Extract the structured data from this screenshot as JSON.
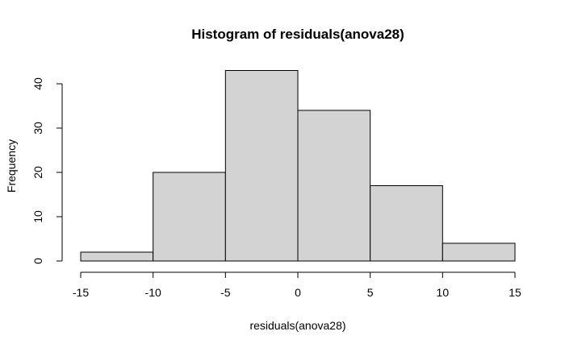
{
  "chart_data": {
    "type": "bar",
    "title": "Histogram of residuals(anova28)",
    "xlabel": "residuals(anova28)",
    "ylabel": "Frequency",
    "bins": [
      {
        "from": -15,
        "to": -10,
        "count": 2
      },
      {
        "from": -10,
        "to": -5,
        "count": 20
      },
      {
        "from": -5,
        "to": 0,
        "count": 43
      },
      {
        "from": 0,
        "to": 5,
        "count": 34
      },
      {
        "from": 5,
        "to": 10,
        "count": 17
      },
      {
        "from": 10,
        "to": 15,
        "count": 4
      }
    ],
    "xlim": [
      -15,
      15
    ],
    "ylim": [
      0,
      43
    ],
    "x_ticks": [
      -15,
      -10,
      -5,
      0,
      5,
      10,
      15
    ],
    "y_ticks": [
      0,
      10,
      20,
      30,
      40
    ],
    "grid": false,
    "legend": "none",
    "bar_fill": "#d3d3d3",
    "bar_stroke": "#000000"
  }
}
